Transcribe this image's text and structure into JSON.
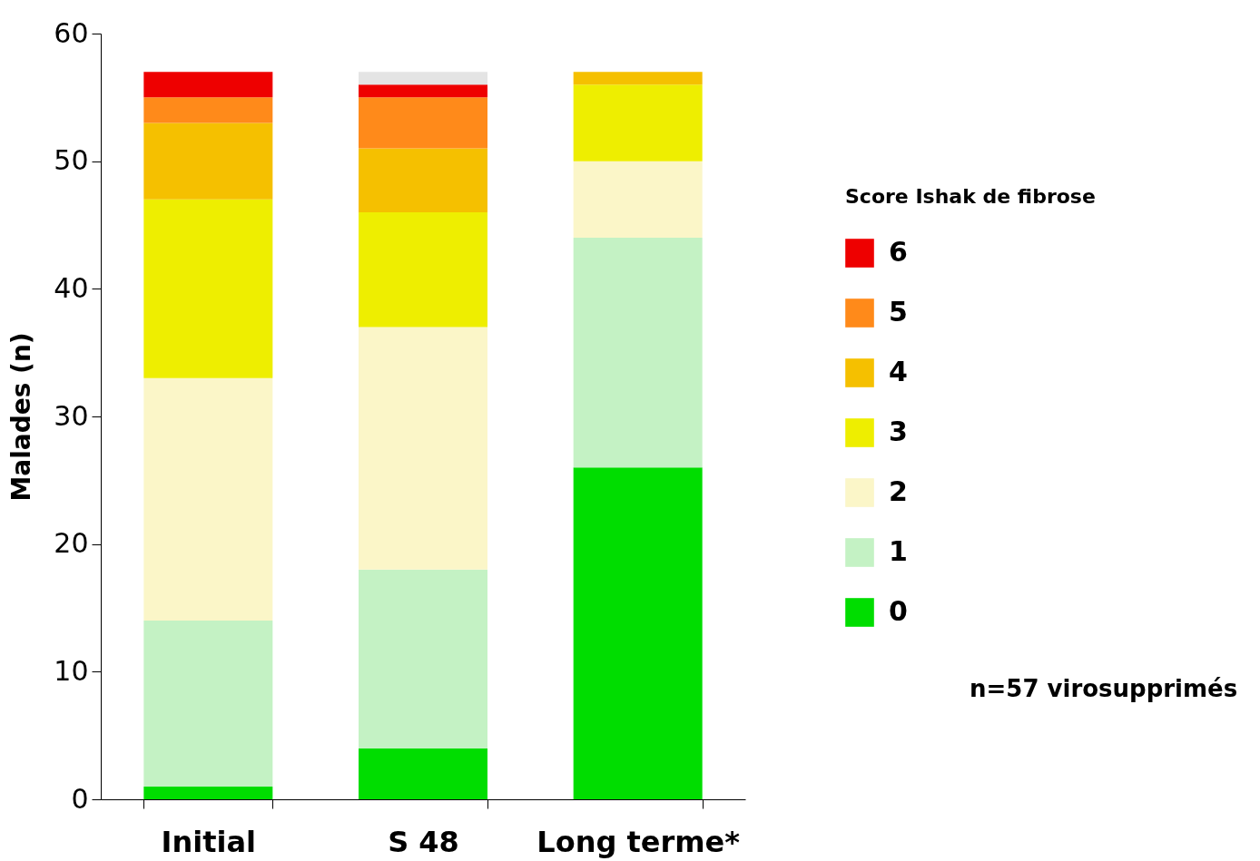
{
  "chart_data": {
    "type": "bar",
    "stacked": true,
    "ylabel": "Malades (n)",
    "legend_title": "Score Ishak de fibrose",
    "legend": "right",
    "grid": false,
    "categories": [
      "Initial",
      "S 48",
      "Long terme*"
    ],
    "ylim": [
      0,
      60
    ],
    "yticks": [
      0,
      10,
      20,
      30,
      40,
      50,
      60
    ],
    "series": [
      {
        "name": "0",
        "color": "#00dd00",
        "values": [
          1,
          4,
          26
        ]
      },
      {
        "name": "1",
        "color": "#c4f2c4",
        "values": [
          13,
          14,
          18
        ]
      },
      {
        "name": "2",
        "color": "#fbf6c8",
        "values": [
          19,
          19,
          6
        ]
      },
      {
        "name": "3",
        "color": "#eeee00",
        "values": [
          14,
          9,
          6
        ]
      },
      {
        "name": "4",
        "color": "#f5c000",
        "values": [
          6,
          5,
          1
        ]
      },
      {
        "name": "5",
        "color": "#ff8a1a",
        "values": [
          2,
          4,
          0
        ]
      },
      {
        "name": "6",
        "color": "#ee0000",
        "values": [
          2,
          1,
          0
        ]
      },
      {
        "color": "#e4e4e4",
        "values": [
          0,
          1,
          0
        ]
      }
    ],
    "annotations": [
      "n=57 virosupprimés"
    ]
  }
}
